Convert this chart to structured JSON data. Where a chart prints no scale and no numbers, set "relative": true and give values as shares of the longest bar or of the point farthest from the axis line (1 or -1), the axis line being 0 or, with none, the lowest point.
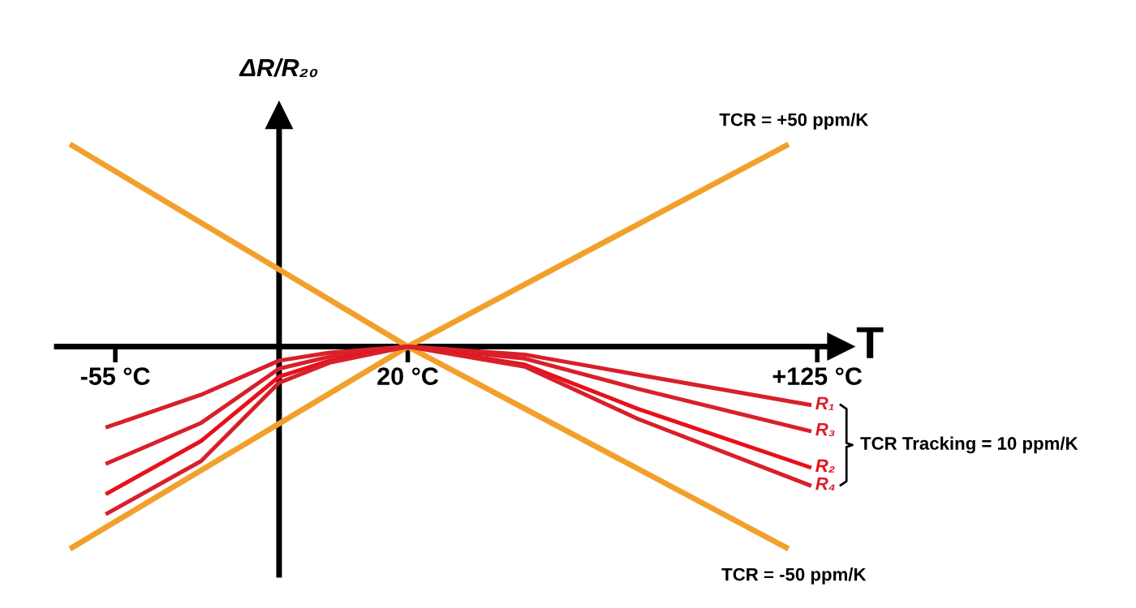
{
  "chart_data": {
    "type": "line",
    "relative": true,
    "xlabel": "T",
    "ylabel": "ΔR/R₂₀",
    "xlim": [
      -70,
      131
    ],
    "xticks": [
      {
        "value": -55,
        "label": "-55 °C"
      },
      {
        "value": 20,
        "label": "20 °C"
      },
      {
        "value": 125,
        "label": "+125 °C"
      }
    ],
    "series": [
      {
        "name": "TCR = +50 ppm/K",
        "color": "#f2a02c",
        "x": [
          -66,
          20,
          117
        ],
        "values": [
          -1,
          0,
          1
        ]
      },
      {
        "name": "TCR = -50 ppm/K",
        "color": "#f2a02c",
        "x": [
          -66,
          20,
          117
        ],
        "values": [
          1,
          0,
          -1
        ]
      },
      {
        "name": "R₁",
        "color": "#d8202a",
        "x": [
          -57,
          -33,
          -13,
          0,
          20,
          50,
          79,
          123
        ],
        "values": [
          -0.4,
          -0.24,
          -0.07,
          -0.03,
          0,
          -0.04,
          -0.14,
          -0.29
        ]
      },
      {
        "name": "R₃",
        "color": "#d8202a",
        "x": [
          -57,
          -33,
          -13,
          0,
          20,
          50,
          79,
          123
        ],
        "values": [
          -0.58,
          -0.38,
          -0.11,
          -0.05,
          0,
          -0.06,
          -0.21,
          -0.42
        ]
      },
      {
        "name": "R₂",
        "color": "#e8101a",
        "x": [
          -57,
          -33,
          -13,
          0,
          20,
          50,
          79,
          123
        ],
        "values": [
          -0.73,
          -0.47,
          -0.15,
          -0.07,
          0,
          -0.09,
          -0.31,
          -0.6
        ]
      },
      {
        "name": "R₄",
        "color": "#d8202a",
        "x": [
          -57,
          -33,
          -13,
          0,
          20,
          50,
          79,
          123
        ],
        "values": [
          -0.83,
          -0.57,
          -0.18,
          -0.08,
          0,
          -0.1,
          -0.36,
          -0.69
        ]
      }
    ],
    "ref_lines": [
      {
        "axis": "x",
        "value": -13,
        "color": "#000000"
      }
    ],
    "annotations": [
      "TCR Tracking = 10 ppm/K"
    ],
    "legend": false,
    "grid": false,
    "marker": "none",
    "line_style": "solid"
  }
}
